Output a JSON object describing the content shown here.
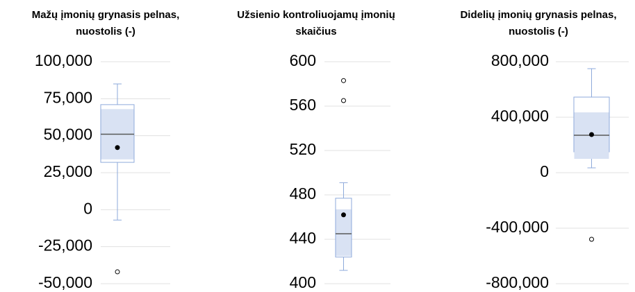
{
  "chart_data": [
    {
      "type": "box",
      "title": [
        "Mažų įmonių grynasis pelnas,",
        "nuostolis (-)"
      ],
      "ylim": [
        -50000,
        100000
      ],
      "yticks": [
        {
          "value": -50000,
          "label": "-50,000"
        },
        {
          "value": -25000,
          "label": "-25,000"
        },
        0,
        {
          "value": 25000,
          "label": "25,000"
        },
        {
          "value": 50000,
          "label": "50,000"
        },
        {
          "value": 75000,
          "label": "75,000"
        },
        {
          "value": 100000,
          "label": "100,000"
        }
      ],
      "grid": true,
      "color": "#8eaadb",
      "shade_color": "#d9e2f3",
      "min": -7000,
      "q1": 32000,
      "median": 51000,
      "q3": 71000,
      "max": 85000,
      "mean": 42000,
      "shade": [
        34000,
        68000
      ],
      "outliers": [
        -42000
      ]
    },
    {
      "type": "box",
      "title": [
        "Užsienio kontroliuojamų įmonių",
        "skaičius"
      ],
      "ylim": [
        400,
        600
      ],
      "yticks": [
        400,
        440,
        480,
        520,
        560,
        600
      ],
      "grid": true,
      "color": "#8eaadb",
      "shade_color": "#d9e2f3",
      "min": 412,
      "q1": 424,
      "median": 445,
      "q3": 477,
      "max": 491,
      "mean": 462,
      "shade": [
        425,
        467
      ],
      "outliers": [
        583,
        565
      ]
    },
    {
      "type": "box",
      "title": [
        "Didelių įmonių grynasis pelnas,",
        "nuostolis (-)"
      ],
      "ylim": [
        -800000,
        800000
      ],
      "yticks": [
        {
          "value": -800000,
          "label": "-800,000"
        },
        {
          "value": -400000,
          "label": "-400,000"
        },
        0,
        {
          "value": 400000,
          "label": "400,000"
        },
        {
          "value": 800000,
          "label": "800,000"
        }
      ],
      "grid": true,
      "color": "#8eaadb",
      "shade_color": "#d9e2f3",
      "min": 35000,
      "q1": 150000,
      "median": 270000,
      "q3": 545000,
      "max": 750000,
      "mean": 275000,
      "shade": [
        100000,
        435000
      ],
      "outliers": [
        -480000
      ]
    }
  ]
}
